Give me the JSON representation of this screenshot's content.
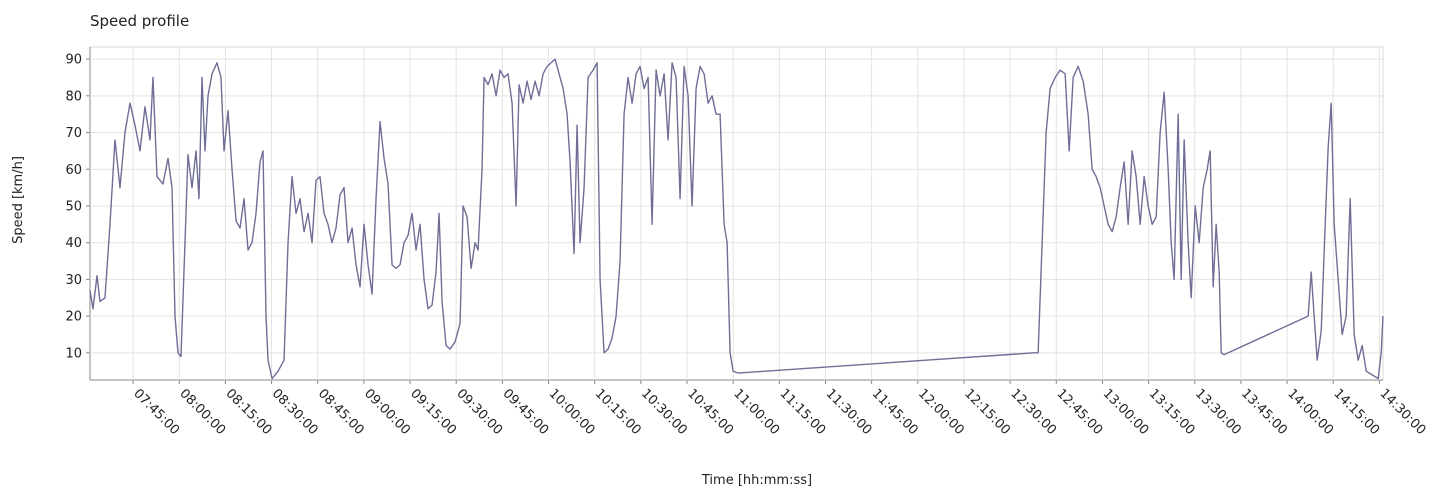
{
  "chart_data": {
    "type": "line",
    "title": "Speed profile",
    "x_label": "Time  [hh:mm:ss]",
    "y_label": "Speed [km/h]",
    "x": [
      "07:31:00",
      "07:31:58",
      "07:33:17",
      "07:34:15",
      "07:35:52",
      "07:37:30",
      "07:39:07",
      "07:40:45",
      "07:42:22",
      "07:44:00",
      "07:45:37",
      "07:47:15",
      "07:48:52",
      "07:50:30",
      "07:51:28",
      "07:52:46",
      "07:54:43",
      "07:56:21",
      "07:57:39",
      "07:58:37",
      "07:59:36",
      "08:00:34",
      "08:01:52",
      "08:02:51",
      "08:04:09",
      "08:05:27",
      "08:06:25",
      "08:07:24",
      "08:08:22",
      "08:09:21",
      "08:10:39",
      "08:12:16",
      "08:13:34",
      "08:14:33",
      "08:15:51",
      "08:17:09",
      "08:18:27",
      "08:19:45",
      "08:21:03",
      "08:22:21",
      "08:23:39",
      "08:24:57",
      "08:26:15",
      "08:27:13",
      "08:28:12",
      "08:28:51",
      "08:30:09",
      "08:32:06",
      "08:34:03",
      "08:35:21",
      "08:36:39",
      "08:37:57",
      "08:39:15",
      "08:40:33",
      "08:41:51",
      "08:43:09",
      "08:44:27",
      "08:45:45",
      "08:47:03",
      "08:48:21",
      "08:49:39",
      "08:50:57",
      "08:52:15",
      "08:53:33",
      "08:54:51",
      "08:56:09",
      "08:57:27",
      "08:58:45",
      "09:00:03",
      "09:01:21",
      "09:02:39",
      "09:03:57",
      "09:05:15",
      "09:06:33",
      "09:07:51",
      "09:09:09",
      "09:10:27",
      "09:11:45",
      "09:13:03",
      "09:14:21",
      "09:15:39",
      "09:16:57",
      "09:18:15",
      "09:19:33",
      "09:20:51",
      "09:22:09",
      "09:23:27",
      "09:24:26",
      "09:25:24",
      "09:26:42",
      "09:28:00",
      "09:29:38",
      "09:31:15",
      "09:32:14",
      "09:33:32",
      "09:34:50",
      "09:36:08",
      "09:37:06",
      "09:38:24",
      "09:39:03",
      "09:40:21",
      "09:41:39",
      "09:42:57",
      "09:44:15",
      "09:45:33",
      "09:46:51",
      "09:48:09",
      "09:49:27",
      "09:50:26",
      "09:51:44",
      "09:53:02",
      "09:54:20",
      "09:55:38",
      "09:56:56",
      "09:58:14",
      "09:59:32",
      "10:00:50",
      "10:02:08",
      "10:03:26",
      "10:04:44",
      "10:06:02",
      "10:07:00",
      "10:08:18",
      "10:09:17",
      "10:10:15",
      "10:11:33",
      "10:12:51",
      "10:14:29",
      "10:15:47",
      "10:16:45",
      "10:18:03",
      "10:19:21",
      "10:20:39",
      "10:21:57",
      "10:23:15",
      "10:24:33",
      "10:25:51",
      "10:27:09",
      "10:28:27",
      "10:29:45",
      "10:31:03",
      "10:32:21",
      "10:33:39",
      "10:34:57",
      "10:36:15",
      "10:37:33",
      "10:38:51",
      "10:40:09",
      "10:41:27",
      "10:42:45",
      "10:44:03",
      "10:45:21",
      "10:46:39",
      "10:47:57",
      "10:49:15",
      "10:50:33",
      "10:51:51",
      "10:53:09",
      "10:54:27",
      "10:55:45",
      "10:57:03",
      "10:58:02",
      "10:59:00",
      "10:59:59",
      "11:01:36",
      "12:37:48",
      "12:39:06",
      "12:40:24",
      "12:41:42",
      "12:43:00",
      "12:44:38",
      "12:46:15",
      "12:47:53",
      "12:49:11",
      "12:50:29",
      "12:52:06",
      "12:53:44",
      "12:55:21",
      "12:56:39",
      "12:57:57",
      "12:59:15",
      "13:00:33",
      "13:01:51",
      "13:03:09",
      "13:04:27",
      "13:05:45",
      "13:07:03",
      "13:08:21",
      "13:09:39",
      "13:10:57",
      "13:12:15",
      "13:13:33",
      "13:14:51",
      "13:16:09",
      "13:17:27",
      "13:18:45",
      "13:20:03",
      "13:21:21",
      "13:22:20",
      "13:23:18",
      "13:24:36",
      "13:25:35",
      "13:26:33",
      "13:27:51",
      "13:28:50",
      "13:30:08",
      "13:31:26",
      "13:32:44",
      "13:34:02",
      "13:35:00",
      "13:35:59",
      "13:36:57",
      "13:37:56",
      "13:38:35",
      "13:39:33",
      "14:06:51",
      "14:07:50",
      "14:08:48",
      "14:09:47",
      "14:11:05",
      "14:12:23",
      "14:13:21",
      "14:14:20",
      "14:15:18",
      "14:16:36",
      "14:17:54",
      "14:19:12",
      "14:20:30",
      "14:21:48",
      "14:23:06",
      "14:24:24",
      "14:25:42",
      "14:27:39",
      "14:29:36",
      "14:30:35",
      "14:31:10"
    ],
    "values": [
      27,
      22,
      31,
      24,
      25,
      45,
      68,
      55,
      70,
      78,
      72,
      65,
      77,
      68,
      85,
      58,
      56,
      63,
      55,
      20,
      10,
      9,
      40,
      64,
      55,
      65,
      52,
      85,
      65,
      80,
      86,
      89,
      85,
      65,
      76,
      60,
      46,
      44,
      52,
      38,
      40,
      48,
      62,
      65,
      20,
      8,
      3,
      5,
      8,
      40,
      58,
      48,
      52,
      43,
      48,
      40,
      57,
      58,
      48,
      45,
      40,
      44,
      53,
      55,
      40,
      44,
      34,
      28,
      45,
      34,
      26,
      52,
      73,
      63,
      56,
      34,
      33,
      34,
      40,
      42,
      48,
      38,
      45,
      30,
      22,
      23,
      32,
      48,
      24,
      12,
      11,
      13,
      18,
      50,
      47,
      33,
      40,
      38,
      60,
      85,
      83,
      86,
      80,
      87,
      85,
      86,
      78,
      50,
      83,
      78,
      84,
      79,
      84,
      80,
      86,
      88,
      89,
      90,
      86,
      82,
      75,
      62,
      37,
      72,
      40,
      55,
      85,
      87,
      89,
      30,
      10,
      11,
      14,
      20,
      35,
      75,
      85,
      78,
      86,
      88,
      82,
      85,
      45,
      87,
      80,
      86,
      68,
      89,
      85,
      52,
      88,
      80,
      50,
      82,
      88,
      86,
      78,
      80,
      75,
      75,
      45,
      40,
      10,
      5,
      4.5,
      10,
      10,
      40,
      70,
      82,
      85,
      87,
      86,
      65,
      85,
      88,
      84,
      75,
      60,
      58,
      55,
      50,
      45,
      43,
      47,
      55,
      62,
      45,
      65,
      58,
      45,
      58,
      50,
      45,
      47,
      70,
      81,
      60,
      40,
      30,
      75,
      30,
      68,
      40,
      25,
      50,
      40,
      55,
      60,
      65,
      28,
      45,
      32,
      10,
      9.5,
      20,
      32,
      20,
      8,
      16,
      45,
      66,
      78,
      45,
      30,
      15,
      20,
      52,
      15,
      8,
      12,
      5,
      4,
      3,
      10,
      20
    ],
    "color": "#6e6e96",
    "xlim": [
      "07:31:00",
      "14:31:10"
    ],
    "xticks": [
      "07:45:00",
      "08:00:00",
      "08:15:00",
      "08:30:00",
      "08:45:00",
      "09:00:00",
      "09:15:00",
      "09:30:00",
      "09:45:00",
      "10:00:00",
      "10:15:00",
      "10:30:00",
      "10:45:00",
      "11:00:00",
      "11:15:00",
      "11:30:00",
      "11:45:00",
      "12:00:00",
      "12:15:00",
      "12:30:00",
      "12:45:00",
      "13:00:00",
      "13:15:00",
      "13:30:00",
      "13:45:00",
      "14:00:00",
      "14:15:00",
      "14:30:00"
    ],
    "ylim": [
      2.6,
      93.3
    ],
    "yticks": [
      10,
      20,
      30,
      40,
      50,
      60,
      70,
      80,
      90
    ],
    "grid": true
  }
}
